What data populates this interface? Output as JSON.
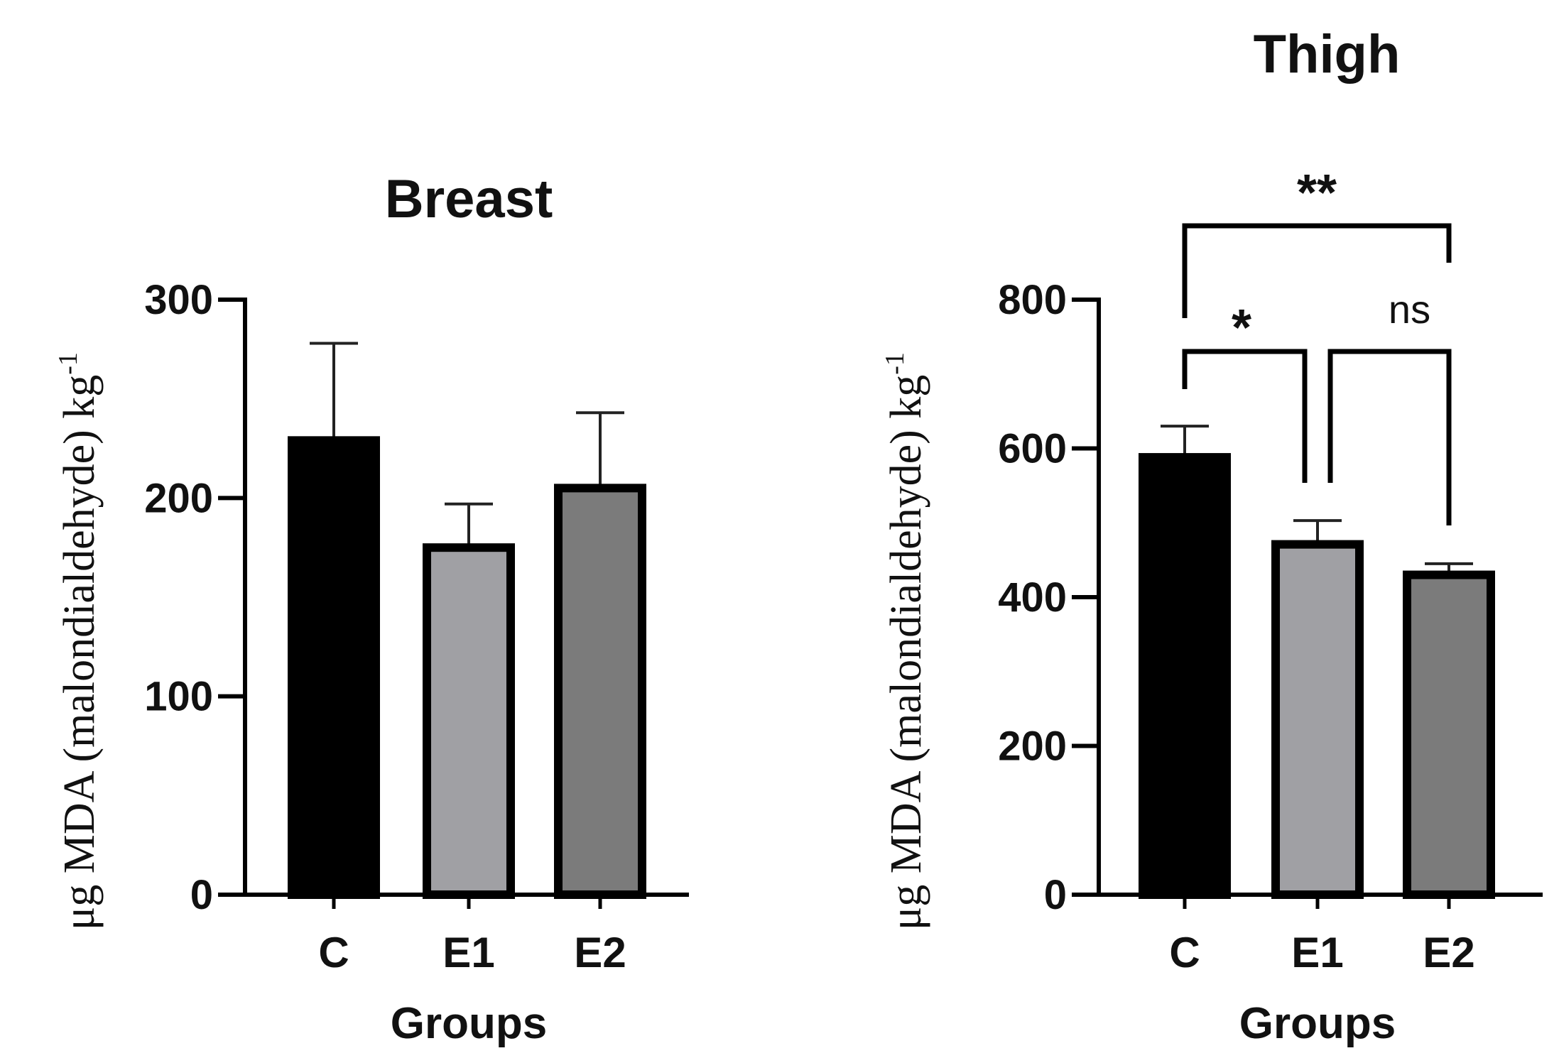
{
  "chart_data": [
    {
      "type": "bar",
      "title": "Breast",
      "xlabel": "Groups",
      "ylabel": "μg MDA (malondialdehyde) kg",
      "ylabel_sup": "-1",
      "categories": [
        "C",
        "E1",
        "E2"
      ],
      "values": [
        229,
        175,
        205
      ],
      "errors": [
        49,
        22,
        38
      ],
      "ylim": [
        0,
        300
      ],
      "yticks": [
        0,
        100,
        200,
        300
      ],
      "colors": [
        "#000000",
        "#a0a0a4",
        "#7b7b7b"
      ]
    },
    {
      "type": "bar",
      "title": "Thigh",
      "xlabel": "Groups",
      "ylabel": "μg MDA (malondialdehyde) kg",
      "ylabel_sup": "-1",
      "categories": [
        "C",
        "E1",
        "E2"
      ],
      "values": [
        588,
        471,
        430
      ],
      "errors": [
        42,
        32,
        15
      ],
      "ylim": [
        0,
        800
      ],
      "yticks": [
        0,
        200,
        400,
        600,
        800
      ],
      "colors": [
        "#000000",
        "#a0a0a4",
        "#7b7b7b"
      ],
      "annotations": [
        {
          "from": "C",
          "to": "E1",
          "label": "*"
        },
        {
          "from": "E1",
          "to": "E2",
          "label": "ns"
        },
        {
          "from": "C",
          "to": "E2",
          "label": "**"
        }
      ]
    }
  ]
}
